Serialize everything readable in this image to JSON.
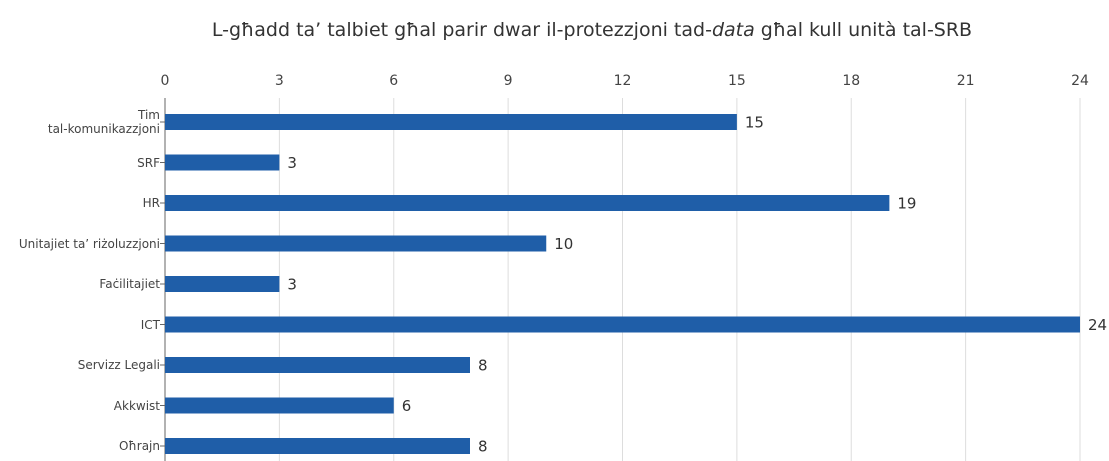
{
  "chart_data": {
    "type": "bar",
    "orientation": "horizontal",
    "title": [
      "L-għadd ta’ talbiet għal parir dwar il-protezzjoni tad-",
      "data",
      " għal kull unità tal-SRB"
    ],
    "categories": [
      "Tim\ntal-komunikazzjoni",
      "SRF",
      "HR",
      "Unitajiet ta’ riżoluzzjoni",
      "Faċilitajiet",
      "ICT",
      "Servizz Legali",
      "Akkwist",
      "Oħrajn"
    ],
    "values": [
      15,
      3,
      19,
      10,
      3,
      24,
      8,
      6,
      8
    ],
    "color": "#1f5ea8",
    "xlim": [
      0,
      24
    ],
    "xticks": [
      0,
      3,
      6,
      9,
      12,
      15,
      18,
      21,
      24
    ],
    "grid": true
  }
}
